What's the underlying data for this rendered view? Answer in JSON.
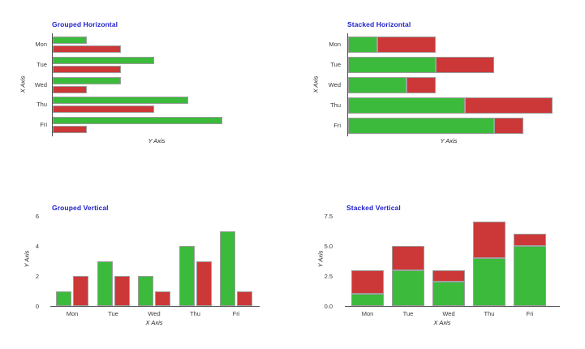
{
  "figure": {
    "background": "#ffffff"
  },
  "colors": {
    "title": "#2222cc",
    "green": "#3cba3c",
    "red": "#cb3837",
    "axis_line": "#555555",
    "tick_text": "#3a3a3a",
    "axis_label_text": "#222222",
    "bar_stroke": "#9e9e9e"
  },
  "chart_data": [
    {
      "type": "bar",
      "orientation": "horizontal",
      "mode": "grouped",
      "title": "Grouped Horizontal",
      "xlabel": "X Axis",
      "ylabel": "Y Axis",
      "categories": [
        "Mon",
        "Tue",
        "Wed",
        "Thu",
        "Fri"
      ],
      "series": [
        {
          "name": "green",
          "color": "#3cba3c",
          "values": [
            1,
            3,
            2,
            4,
            5
          ]
        },
        {
          "name": "red",
          "color": "#cb3837",
          "values": [
            2,
            2,
            1,
            3,
            1
          ]
        }
      ],
      "value_ticks": [],
      "value_range": [
        0,
        5
      ],
      "grid": false,
      "legend": false
    },
    {
      "type": "bar",
      "orientation": "horizontal",
      "mode": "stacked",
      "title": "Stacked Horizontal",
      "xlabel": "X Axis",
      "ylabel": "Y Axis",
      "categories": [
        "Mon",
        "Tue",
        "Wed",
        "Thu",
        "Fri"
      ],
      "series": [
        {
          "name": "green",
          "color": "#3cba3c",
          "values": [
            1,
            3,
            2,
            4,
            5
          ]
        },
        {
          "name": "red",
          "color": "#cb3837",
          "values": [
            2,
            2,
            1,
            3,
            1
          ]
        }
      ],
      "value_ticks": [],
      "value_range": [
        0,
        7
      ],
      "grid": false,
      "legend": false
    },
    {
      "type": "bar",
      "orientation": "vertical",
      "mode": "grouped",
      "title": "Grouped Vertical",
      "xlabel": "X Axis",
      "ylabel": "Y Axis",
      "categories": [
        "Mon",
        "Tue",
        "Wed",
        "Thu",
        "Fri"
      ],
      "series": [
        {
          "name": "green",
          "color": "#3cba3c",
          "values": [
            1,
            3,
            2,
            4,
            5
          ]
        },
        {
          "name": "red",
          "color": "#cb3837",
          "values": [
            2,
            2,
            1,
            3,
            1
          ]
        }
      ],
      "value_ticks": [
        "0",
        "2",
        "4",
        "6"
      ],
      "value_range": [
        0,
        6
      ],
      "grid": false,
      "legend": false
    },
    {
      "type": "bar",
      "orientation": "vertical",
      "mode": "stacked",
      "title": "Stacked Vertical",
      "xlabel": "X Axis",
      "ylabel": "Y Axis",
      "categories": [
        "Mon",
        "Tue",
        "Wed",
        "Thu",
        "Fri"
      ],
      "series": [
        {
          "name": "green",
          "color": "#3cba3c",
          "values": [
            1,
            3,
            2,
            4,
            5
          ]
        },
        {
          "name": "red",
          "color": "#cb3837",
          "values": [
            2,
            2,
            1,
            3,
            1
          ]
        }
      ],
      "value_ticks": [
        "0.0",
        "2.5",
        "5.0",
        "7.5"
      ],
      "value_range": [
        0,
        7.5
      ],
      "grid": false,
      "legend": false
    }
  ]
}
